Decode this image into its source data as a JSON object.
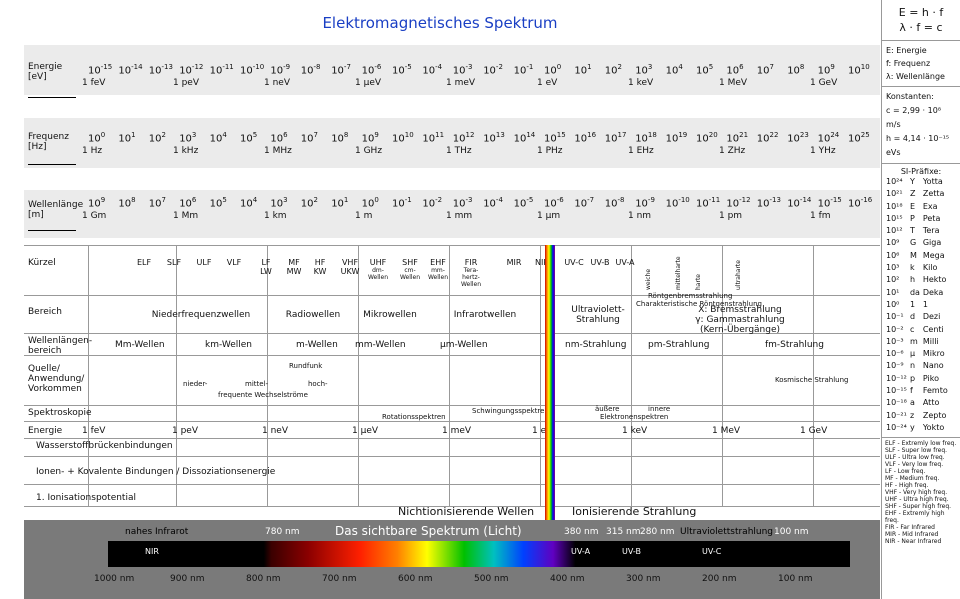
{
  "title": "Elektromagnetisches Spektrum",
  "rows": {
    "energie": {
      "label": "Energie",
      "unit": "[eV]",
      "units": [
        "1 feV",
        "1 peV",
        "1 neV",
        "1 µeV",
        "1 meV",
        "1 eV",
        "1 keV",
        "1 MeV",
        "1 GeV"
      ],
      "exps": [
        "-15",
        "-14",
        "-13",
        "-12",
        "-11",
        "-10",
        "-9",
        "-8",
        "-7",
        "-6",
        "-5",
        "-4",
        "-3",
        "-2",
        "-1",
        "0",
        "1",
        "2",
        "3",
        "4",
        "5",
        "6",
        "7",
        "8",
        "9",
        "10"
      ]
    },
    "frequenz": {
      "label": "Frequenz",
      "unit": "[Hz]",
      "units": [
        "1 Hz",
        "1 kHz",
        "1 MHz",
        "1 GHz",
        "1 THz",
        "1 PHz",
        "1 EHz",
        "1 ZHz",
        "1 YHz"
      ],
      "exps": [
        "0",
        "1",
        "2",
        "3",
        "4",
        "5",
        "6",
        "7",
        "8",
        "9",
        "10",
        "11",
        "12",
        "13",
        "14",
        "15",
        "16",
        "17",
        "18",
        "19",
        "20",
        "21",
        "22",
        "23",
        "24",
        "25"
      ]
    },
    "wellenlaenge": {
      "label": "Wellenlänge",
      "unit": "[m]",
      "units": [
        "1 Gm",
        "1 Mm",
        "1 km",
        "1 m",
        "1 mm",
        "1 µm",
        "1 nm",
        "1 pm",
        "1 fm"
      ],
      "exps": [
        "9",
        "8",
        "7",
        "6",
        "5",
        "4",
        "3",
        "2",
        "1",
        "0",
        "-1",
        "-2",
        "-3",
        "-4",
        "-5",
        "-6",
        "-7",
        "-8",
        "-9",
        "-10",
        "-11",
        "-12",
        "-13",
        "-14",
        "-15",
        "-16"
      ]
    }
  },
  "kuerzel": {
    "label": "Kürzel",
    "items": [
      "ELF",
      "SLF",
      "ULF",
      "VLF",
      "LF\nLW",
      "MF\nMW",
      "HF\nKW",
      "VHF\nUKW",
      "UHF",
      "SHF",
      "EHF",
      "FIR",
      "MIR",
      "NIR",
      "UV-C",
      "UV-B",
      "UV-A"
    ],
    "subs": [
      "dm-\nWellen",
      "cm-\nWellen",
      "mm-\nWellen",
      "Tera-\nhertz-\nWellen"
    ],
    "xray": [
      "weiche",
      "mittelharte",
      "harte",
      "ultraharte"
    ]
  },
  "bereich": {
    "label": "Bereich",
    "items": [
      "Niederfrequenzwellen",
      "Radiowellen",
      "Mikrowellen",
      "Infrarotwellen",
      "Ultraviolett-\nStrahlung",
      "X: Bremsstrahlung\nγ: Gammastrahlung\n(Kern-Übergänge)"
    ],
    "xsub1": "Röntgenbremsstrahlung",
    "xsub2": "Charakteristische Röntgenstrahlung"
  },
  "wlbereich": {
    "label": "Wellenlängen-\nbereich",
    "items": [
      "Mm-Wellen",
      "km-Wellen",
      "m-Wellen",
      "mm-Wellen",
      "µm-Wellen",
      "nm-Strahlung",
      "pm-Strahlung",
      "fm-Strahlung"
    ]
  },
  "quelle": {
    "label": "Quelle/\nAnwendung/\nVorkommen",
    "items": [
      "nieder-",
      "mittel-",
      "hoch-",
      "Rundfunk",
      "frequente Wechselströme",
      "Kosmische Strahlung"
    ]
  },
  "spektroskopie": {
    "label": "Spektroskopie",
    "items": [
      "Schwingungsspektren",
      "Rotationsspektren",
      "äußere",
      "innere",
      "Elektronenspektren"
    ]
  },
  "energie2": {
    "label": "Energie",
    "items": [
      "1 feV",
      "1 peV",
      "1 neV",
      "1 µeV",
      "1 meV",
      "1 eV",
      "1 keV",
      "1 MeV",
      "1 GeV"
    ]
  },
  "bindungen": [
    "Wasserstoffbrückenbindungen",
    "Ionen- + Kovalente Bindungen / Dissoziationsenergie",
    "1. Ionisationspotential"
  ],
  "ionisation": {
    "left": "Nichtionisierende Wellen",
    "right": "Ionisierende Strahlung"
  },
  "visible": {
    "title": "Das sichtbare Spektrum (Licht)",
    "nahes": "nahes Infrarot",
    "uvs": "Ultraviolettstrahlung",
    "top": [
      "780 nm",
      "380 nm",
      "315 nm",
      "280 nm",
      "100 nm"
    ],
    "segments": [
      "NIR",
      "UV-A",
      "UV-B",
      "UV-C"
    ],
    "ticks": [
      "1000 nm",
      "900 nm",
      "800 nm",
      "700 nm",
      "600 nm",
      "500 nm",
      "400 nm",
      "300 nm",
      "200 nm",
      "100 nm"
    ]
  },
  "side": {
    "formula1": "E = h · f",
    "formula2": "λ · f = c",
    "legend": [
      "E: Energie",
      "f: Frequenz",
      "λ: Wellenlänge"
    ],
    "konst_title": "Konstanten:",
    "c": "c = 2,99 · 10⁸ m/s",
    "h": "h = 4,14 · 10⁻¹⁵ eVs",
    "si_title": "SI-Präfixe:",
    "prefixes": [
      [
        "10²⁴",
        "Y",
        "Yotta"
      ],
      [
        "10²¹",
        "Z",
        "Zetta"
      ],
      [
        "10¹⁸",
        "E",
        "Exa"
      ],
      [
        "10¹⁵",
        "P",
        "Peta"
      ],
      [
        "10¹²",
        "T",
        "Tera"
      ],
      [
        "10⁹",
        "G",
        "Giga"
      ],
      [
        "10⁶",
        "M",
        "Mega"
      ],
      [
        "10³",
        "k",
        "Kilo"
      ],
      [
        "10²",
        "h",
        "Hekto"
      ],
      [
        "10¹",
        "da",
        "Deka"
      ],
      [
        "10⁰",
        "1",
        "1"
      ],
      [
        "10⁻¹",
        "d",
        "Dezi"
      ],
      [
        "10⁻²",
        "c",
        "Centi"
      ],
      [
        "10⁻³",
        "m",
        "Milli"
      ],
      [
        "10⁻⁶",
        "µ",
        "Mikro"
      ],
      [
        "10⁻⁹",
        "n",
        "Nano"
      ],
      [
        "10⁻¹²",
        "p",
        "Piko"
      ],
      [
        "10⁻¹⁵",
        "f",
        "Femto"
      ],
      [
        "10⁻¹⁸",
        "a",
        "Atto"
      ],
      [
        "10⁻²¹",
        "z",
        "Zepto"
      ],
      [
        "10⁻²⁴",
        "y",
        "Yokto"
      ]
    ],
    "abbrevs": [
      "ELF - Extremly low freq.",
      "SLF - Super low freq.",
      "ULF - Ultra low freq.",
      "VLF - Very low freq.",
      "LF - Low freq.",
      "MF - Medium freq.",
      "HF - High freq.",
      "VHF - Very high freq.",
      "UHF - Ultra high freq.",
      "SHF - Super high freq.",
      "EHF - Extremly high freq.",
      "FIR - Far Infrared",
      "MIR - Mid Infrared",
      "NIR - Near Infrared"
    ]
  }
}
